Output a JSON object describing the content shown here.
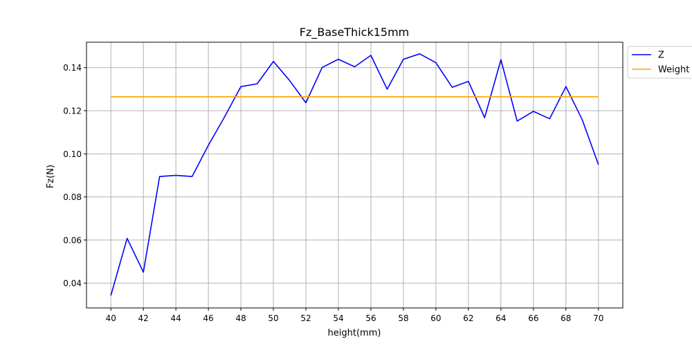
{
  "chart_data": {
    "type": "line",
    "title": "Fz_BaseThick15mm",
    "xlabel": "height(mm)",
    "ylabel": "Fz(N)",
    "xlim": [
      38.5,
      71.5
    ],
    "ylim": [
      0.0285,
      0.1518
    ],
    "xticks": [
      40,
      42,
      44,
      46,
      48,
      50,
      52,
      54,
      56,
      58,
      60,
      62,
      64,
      66,
      68,
      70
    ],
    "xtick_labels": [
      "40",
      "42",
      "44",
      "46",
      "48",
      "50",
      "52",
      "54",
      "56",
      "58",
      "60",
      "62",
      "64",
      "66",
      "68",
      "70"
    ],
    "yticks": [
      0.04,
      0.06,
      0.08,
      0.1,
      0.12,
      0.14
    ],
    "ytick_labels": [
      "0.04",
      "0.06",
      "0.08",
      "0.10",
      "0.12",
      "0.14"
    ],
    "grid": true,
    "legend_position": "top-right (outside)",
    "series": [
      {
        "name": "Z",
        "color": "#0000ff",
        "x": [
          40,
          41,
          42,
          43,
          44,
          45,
          46,
          47,
          48,
          49,
          50,
          51,
          52,
          53,
          54,
          55,
          56,
          57,
          58,
          59,
          60,
          61,
          62,
          63,
          64,
          65,
          66,
          67,
          68,
          69,
          70
        ],
        "y": [
          0.0343,
          0.0608,
          0.0451,
          0.0895,
          0.09,
          0.0895,
          0.104,
          0.1172,
          0.1312,
          0.1325,
          0.1429,
          0.134,
          0.1237,
          0.1401,
          0.1439,
          0.1404,
          0.1457,
          0.13,
          0.1439,
          0.1464,
          0.1423,
          0.1309,
          0.1336,
          0.1168,
          0.1437,
          0.1152,
          0.1197,
          0.1163,
          0.1312,
          0.1159,
          0.095
        ]
      },
      {
        "name": "Weight",
        "color": "#ffa500",
        "x": [
          40,
          70
        ],
        "y": [
          0.1265,
          0.1265
        ]
      }
    ]
  }
}
